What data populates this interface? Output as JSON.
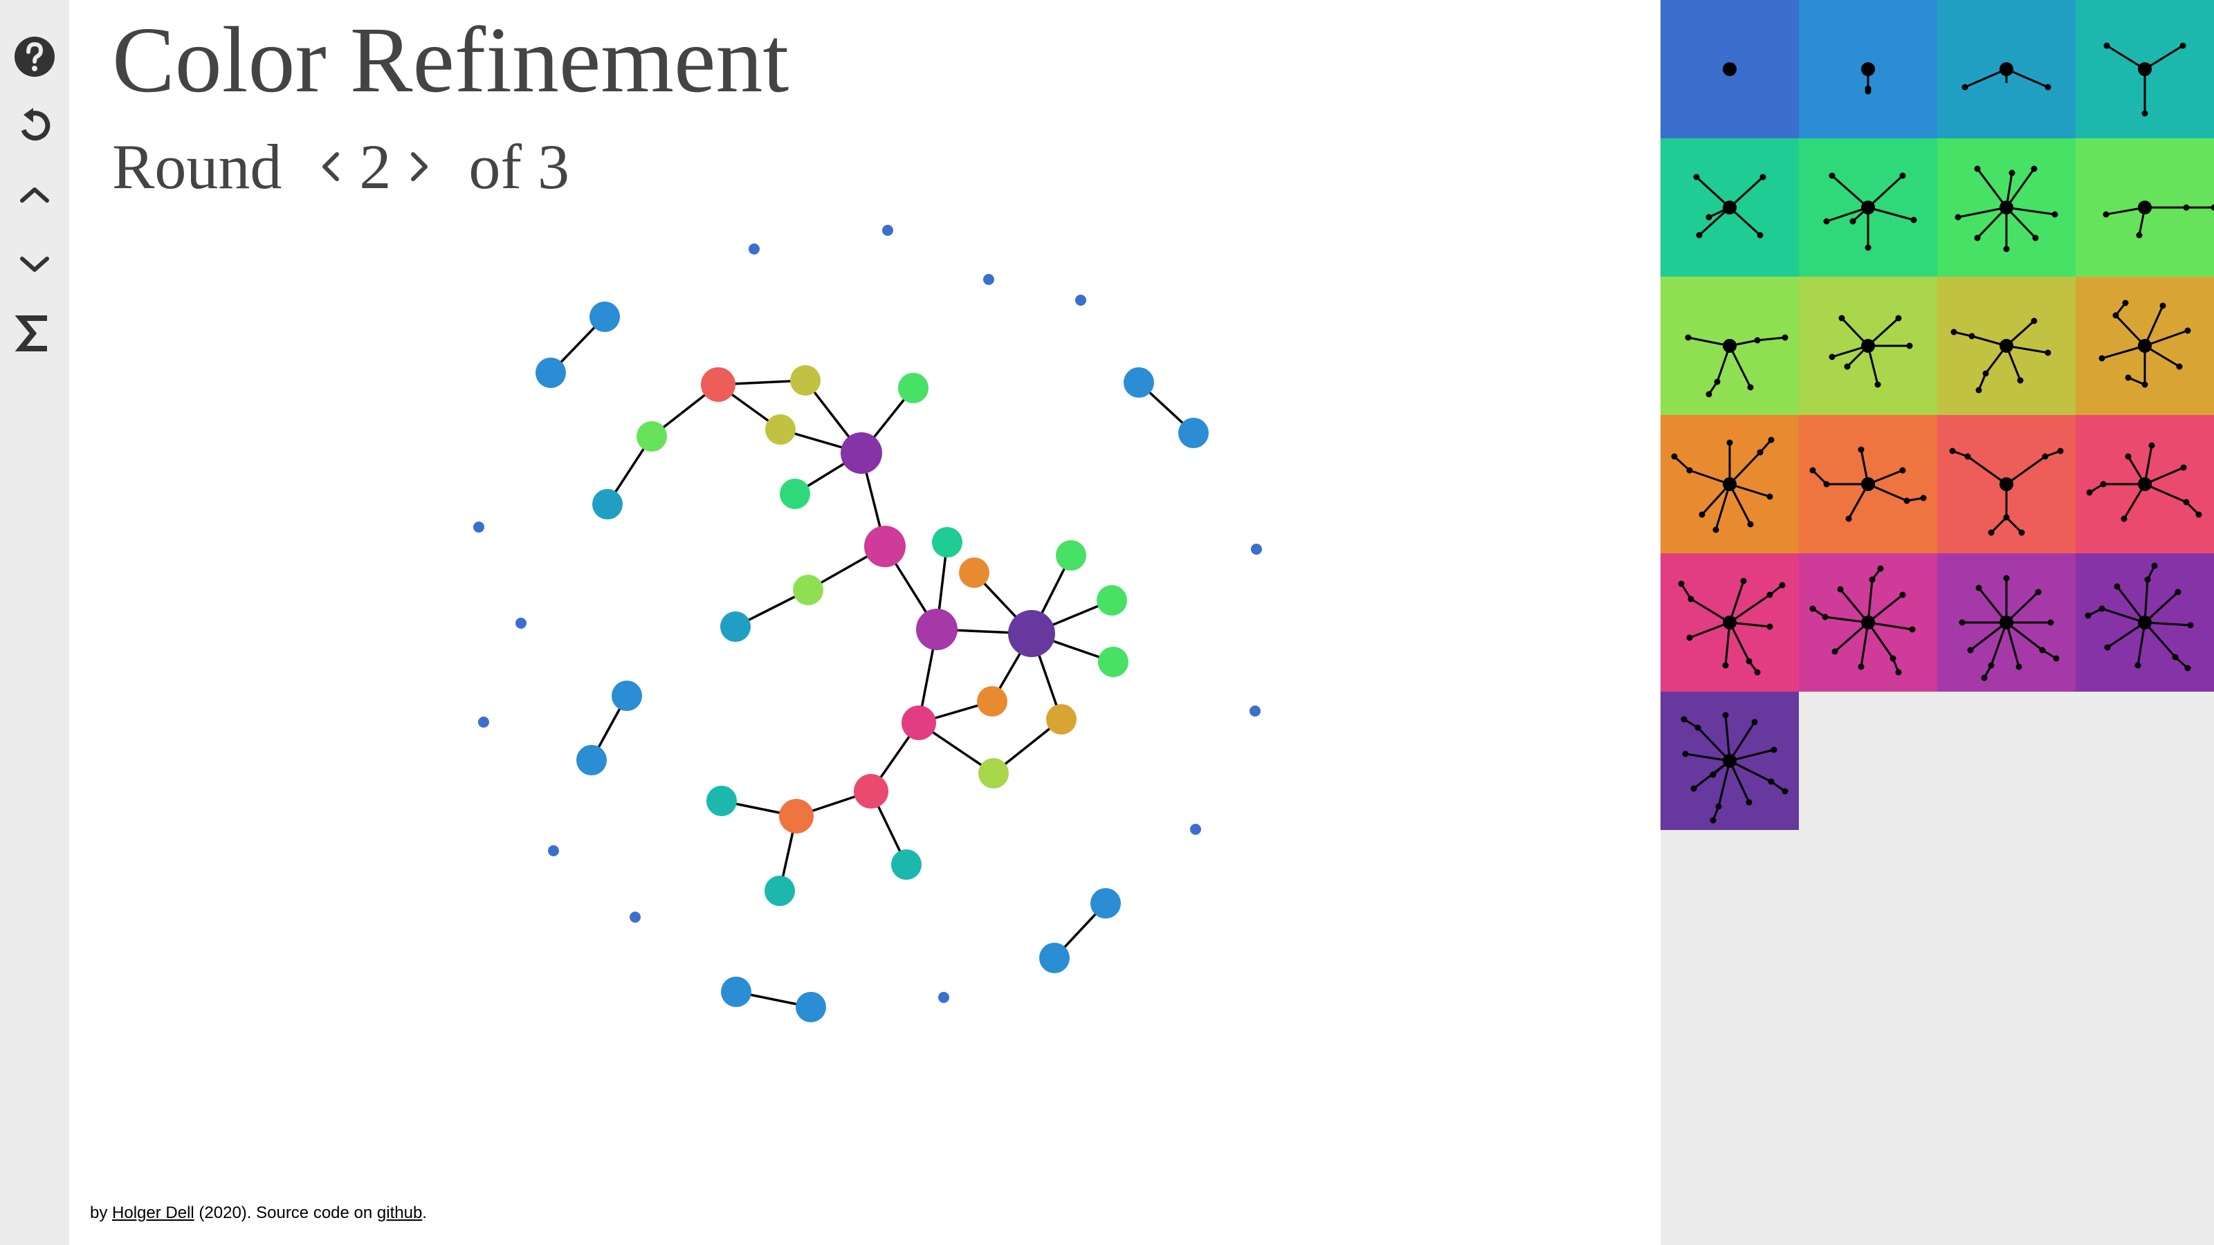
{
  "title": "Color Refinement",
  "round": {
    "label": "Round",
    "current": "2",
    "of_label": "of 3"
  },
  "toolbar": [
    {
      "name": "help-button",
      "icon": "help-icon"
    },
    {
      "name": "reset-button",
      "icon": "reset-icon"
    },
    {
      "name": "collapse-button",
      "icon": "chevron-up-icon"
    },
    {
      "name": "expand-button",
      "icon": "chevron-down-icon"
    },
    {
      "name": "sum-button",
      "icon": "sigma-icon"
    }
  ],
  "footer": {
    "by": "by ",
    "author": "Holger Dell",
    "middle": " (2020). Source code on ",
    "link": "github",
    "end": "."
  },
  "colors": {
    "c1": "#3c6fcd",
    "c2": "#2b8dd4",
    "c3": "#209fc2",
    "c4": "#1db8ad",
    "c5": "#1fcc93",
    "c6": "#2fd97a",
    "c7": "#46e165",
    "c8": "#66e35a",
    "c9": "#8ee052",
    "c10": "#a9d64a",
    "c11": "#c2c242",
    "c12": "#d8a535",
    "c13": "#e88b30",
    "c14": "#ee7440",
    "c15": "#ee5e58",
    "c16": "#ea4a6e",
    "c17": "#e23d83",
    "c18": "#ce3b98",
    "c19": "#a639a8",
    "c20": "#8633a7",
    "c21": "#67389e"
  },
  "swatches": [
    "c1",
    "c2",
    "c3",
    "c4",
    "c5",
    "c6",
    "c7",
    "c8",
    "c9",
    "c10",
    "c11",
    "c12",
    "c13",
    "c14",
    "c15",
    "c16",
    "c17",
    "c18",
    "c19",
    "c20",
    "c21"
  ],
  "graph": {
    "nodes": [
      {
        "id": "a1",
        "c": "c1"
      },
      {
        "id": "a2",
        "c": "c1"
      },
      {
        "id": "a3",
        "c": "c1"
      },
      {
        "id": "a4",
        "c": "c1"
      },
      {
        "id": "a5",
        "c": "c1"
      },
      {
        "id": "a6",
        "c": "c1"
      },
      {
        "id": "a7",
        "c": "c1"
      },
      {
        "id": "a8",
        "c": "c1"
      },
      {
        "id": "a9",
        "c": "c1"
      },
      {
        "id": "a10",
        "c": "c1"
      },
      {
        "id": "a11",
        "c": "c1"
      },
      {
        "id": "a12",
        "c": "c1"
      },
      {
        "id": "a13",
        "c": "c1"
      },
      {
        "id": "p1a",
        "c": "c2"
      },
      {
        "id": "p1b",
        "c": "c2"
      },
      {
        "id": "p2a",
        "c": "c2"
      },
      {
        "id": "p2b",
        "c": "c2"
      },
      {
        "id": "p3a",
        "c": "c2"
      },
      {
        "id": "p3b",
        "c": "c2"
      },
      {
        "id": "p4a",
        "c": "c2"
      },
      {
        "id": "p4b",
        "c": "c2"
      },
      {
        "id": "p5a",
        "c": "c2"
      },
      {
        "id": "p5b",
        "c": "c2"
      },
      {
        "id": "r",
        "c": "c15"
      },
      {
        "id": "y1",
        "c": "c11"
      },
      {
        "id": "y2",
        "c": "c11"
      },
      {
        "id": "lg",
        "c": "c8"
      },
      {
        "id": "tb",
        "c": "c3"
      },
      {
        "id": "gr1",
        "c": "c7"
      },
      {
        "id": "gr2",
        "c": "c6"
      },
      {
        "id": "pu",
        "c": "c20"
      },
      {
        "id": "mg",
        "c": "c18"
      },
      {
        "id": "yg",
        "c": "c9"
      },
      {
        "id": "tb2",
        "c": "c3"
      },
      {
        "id": "tg",
        "c": "c5"
      },
      {
        "id": "or1",
        "c": "c13"
      },
      {
        "id": "vi",
        "c": "c19"
      },
      {
        "id": "dp",
        "c": "c21"
      },
      {
        "id": "g1",
        "c": "c7"
      },
      {
        "id": "g2",
        "c": "c7"
      },
      {
        "id": "g3",
        "c": "c7"
      },
      {
        "id": "pk",
        "c": "c17"
      },
      {
        "id": "or2",
        "c": "c13"
      },
      {
        "id": "gd",
        "c": "c12"
      },
      {
        "id": "lm",
        "c": "c10"
      },
      {
        "id": "cr",
        "c": "c16"
      },
      {
        "id": "org",
        "c": "c14"
      },
      {
        "id": "t1",
        "c": "c4"
      },
      {
        "id": "t2",
        "c": "c4"
      },
      {
        "id": "t3",
        "c": "c4"
      }
    ],
    "edges": [
      [
        "p1a",
        "p1b"
      ],
      [
        "p2a",
        "p2b"
      ],
      [
        "p3a",
        "p3b"
      ],
      [
        "p4a",
        "p4b"
      ],
      [
        "p5a",
        "p5b"
      ],
      [
        "r",
        "y1"
      ],
      [
        "r",
        "y2"
      ],
      [
        "r",
        "lg"
      ],
      [
        "lg",
        "tb"
      ],
      [
        "y1",
        "pu"
      ],
      [
        "y2",
        "pu"
      ],
      [
        "pu",
        "gr1"
      ],
      [
        "pu",
        "gr2"
      ],
      [
        "pu",
        "mg"
      ],
      [
        "mg",
        "yg"
      ],
      [
        "yg",
        "tb2"
      ],
      [
        "mg",
        "vi"
      ],
      [
        "tg",
        "vi"
      ],
      [
        "vi",
        "dp"
      ],
      [
        "or1",
        "dp"
      ],
      [
        "dp",
        "g1"
      ],
      [
        "dp",
        "g2"
      ],
      [
        "dp",
        "g3"
      ],
      [
        "dp",
        "or2"
      ],
      [
        "dp",
        "gd"
      ],
      [
        "vi",
        "pk"
      ],
      [
        "pk",
        "or2"
      ],
      [
        "pk",
        "lm"
      ],
      [
        "gd",
        "lm"
      ],
      [
        "pk",
        "cr"
      ],
      [
        "cr",
        "org"
      ],
      [
        "cr",
        "t3"
      ],
      [
        "org",
        "t1"
      ],
      [
        "org",
        "t2"
      ]
    ]
  }
}
